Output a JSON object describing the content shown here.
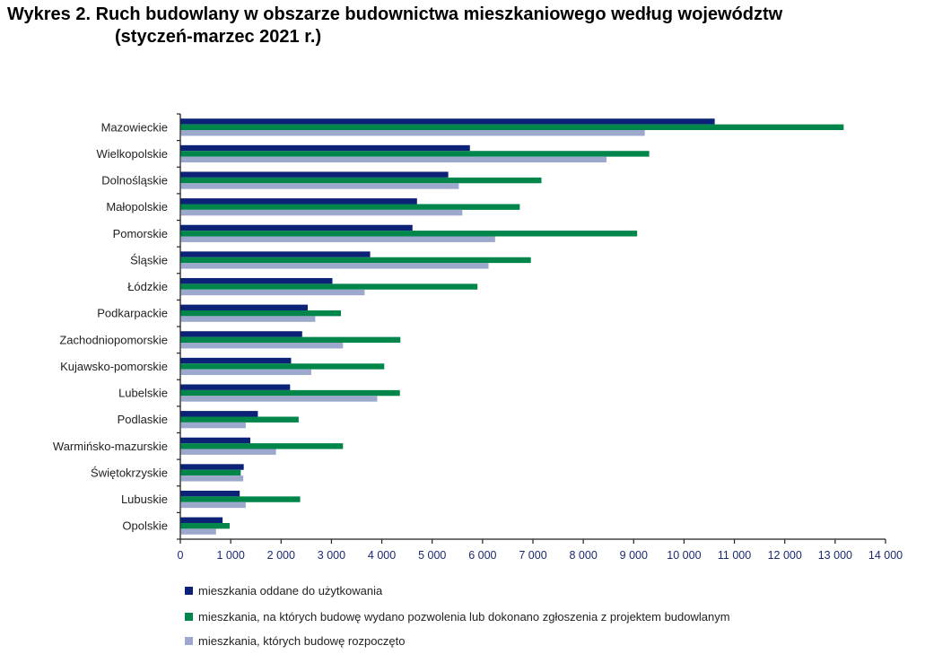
{
  "chart_data": {
    "type": "bar",
    "orientation": "horizontal",
    "title": "Wykres 2. Ruch budowlany w obszarze budownictwa mieszkaniowego według województw",
    "subtitle": "(styczeń-marzec 2021 r.)",
    "xlabel": "",
    "ylabel": "",
    "xlim": [
      0,
      14000
    ],
    "xticks": [
      "0",
      "1 000",
      "2 000",
      "3 000",
      "4 000",
      "5 000",
      "6 000",
      "7 000",
      "8 000",
      "9 000",
      "10 000",
      "11 000",
      "12 000",
      "13 000",
      "14 000"
    ],
    "grid": false,
    "legend_position": "bottom",
    "categories": [
      "Mazowieckie",
      "Wielkopolskie",
      "Dolnośląskie",
      "Małopolskie",
      "Pomorskie",
      "Śląskie",
      "Łódzkie",
      "Podkarpackie",
      "Zachodniopomorskie",
      "Kujawsko-pomorskie",
      "Lubelskie",
      "Podlaskie",
      "Warmińsko-mazurskie",
      "Świętokrzyskie",
      "Lubuskie",
      "Opolskie"
    ],
    "series": [
      {
        "name": "mieszkania oddane do użytkowania",
        "color": "#0b2277",
        "values": [
          10600,
          5740,
          5310,
          4690,
          4600,
          3760,
          3010,
          2520,
          2410,
          2190,
          2170,
          1530,
          1380,
          1250,
          1170,
          830
        ]
      },
      {
        "name": "mieszkania, na których budowę wydano pozwolenia lub dokonano zgłoszenia z projektem budowlanym",
        "color": "#00854a",
        "values": [
          13160,
          9300,
          7160,
          6730,
          9060,
          6950,
          5890,
          3180,
          4360,
          4040,
          4350,
          2340,
          3220,
          1190,
          2370,
          970
        ]
      },
      {
        "name": "mieszkania, których budowę rozpoczęto",
        "color": "#9ca8cc",
        "values": [
          9210,
          8450,
          5520,
          5590,
          6240,
          6110,
          3650,
          2670,
          3220,
          2590,
          3900,
          1290,
          1890,
          1240,
          1290,
          700
        ]
      }
    ]
  }
}
